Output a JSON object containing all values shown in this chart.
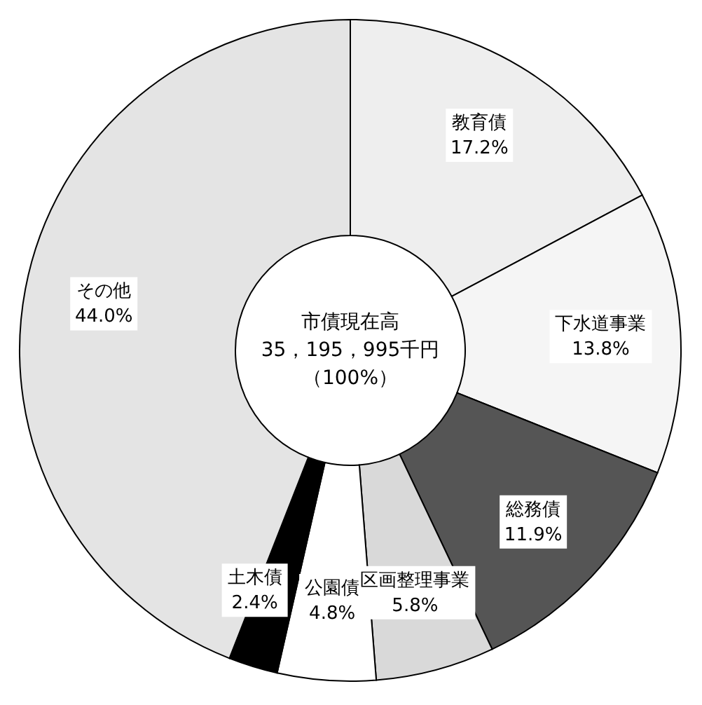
{
  "chart_data": {
    "type": "donut",
    "title": "市債現在高",
    "annotations": [
      "35，195，995千円",
      "（100%）"
    ],
    "categories": [
      "教育債",
      "下水道事業",
      "総務債",
      "区画整理事業",
      "公園債",
      "土木債",
      "その他"
    ],
    "values": [
      17.2,
      13.8,
      11.9,
      5.8,
      4.8,
      2.4,
      44.0
    ],
    "value_labels": [
      "17.2%",
      "13.8%",
      "11.9%",
      "5.8%",
      "4.8%",
      "2.4%",
      "44.0%"
    ],
    "colors": [
      "#eeeeee",
      "#f5f5f5",
      "#555555",
      "#d9d9d9",
      "#ffffff",
      "#000000",
      "#e4e4e4"
    ],
    "legend": false
  }
}
